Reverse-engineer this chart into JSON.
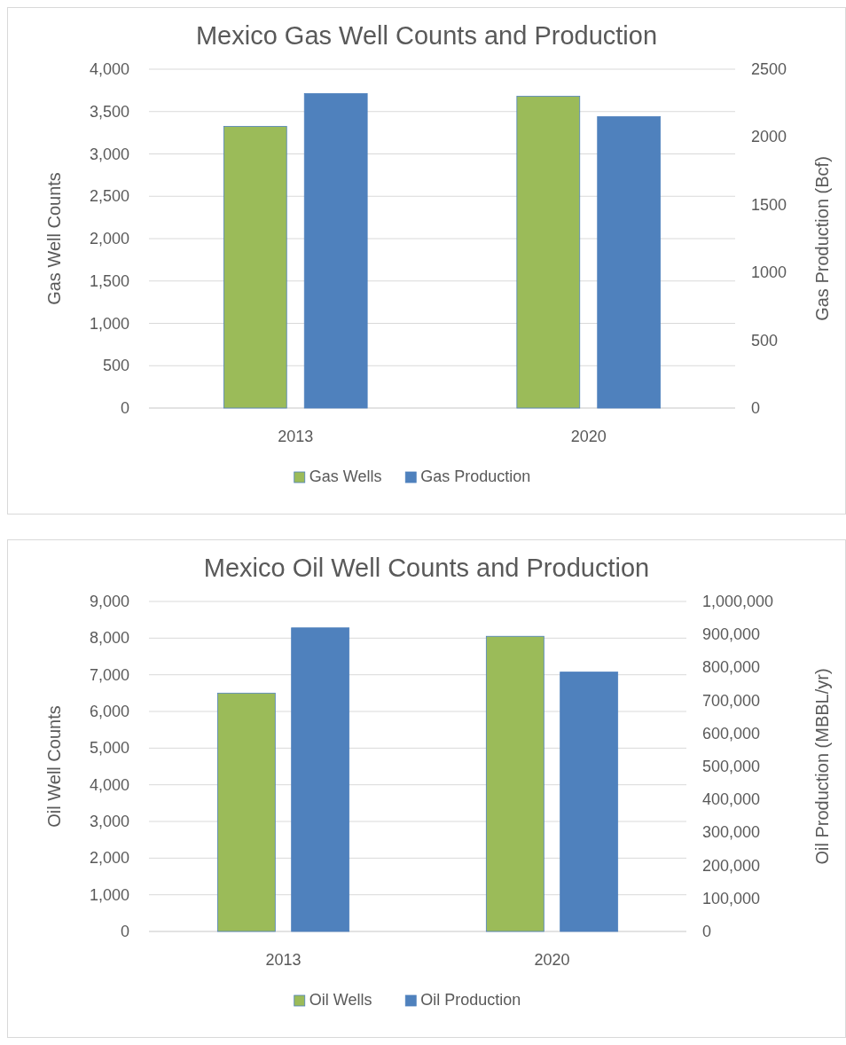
{
  "chart_data": [
    {
      "type": "bar",
      "title": "Mexico Gas Well Counts and Production",
      "ylabel": "Gas Well Counts",
      "y2label": "Gas Production (Bcf)",
      "categories": [
        "2013",
        "2020"
      ],
      "series": [
        {
          "name": "Gas Wells",
          "color": "#9bbb59",
          "values": [
            3325,
            3680
          ]
        },
        {
          "name": "Gas Production",
          "color": "#4f81bd",
          "values": [
            2320,
            2150
          ],
          "axis": "y2"
        }
      ],
      "ylim": [
        0,
        4000
      ],
      "yticks": [
        {
          "value": 0,
          "label": "0"
        },
        {
          "value": 500,
          "label": "500"
        },
        {
          "value": 1000,
          "label": "1,000"
        },
        {
          "value": 1500,
          "label": "1,500"
        },
        {
          "value": 2000,
          "label": "2,000"
        },
        {
          "value": 2500,
          "label": "2,500"
        },
        {
          "value": 3000,
          "label": "3,000"
        },
        {
          "value": 3500,
          "label": "3,500"
        },
        {
          "value": 4000,
          "label": "4,000"
        }
      ],
      "y2lim": [
        0,
        2500
      ],
      "y2ticks": [
        0,
        500,
        1000,
        1500,
        2000,
        2500
      ],
      "grid": "y",
      "legend": "bottom"
    },
    {
      "type": "bar",
      "title": "Mexico Oil Well Counts and Production",
      "ylabel": "Oil Well Counts",
      "y2label": "Oil Production (MBBL/yr)",
      "categories": [
        "2013",
        "2020"
      ],
      "series": [
        {
          "name": "Oil Wells",
          "color": "#9bbb59",
          "values": [
            6500,
            8050
          ]
        },
        {
          "name": "Oil Production",
          "color": "#4f81bd",
          "values": [
            920000,
            786000
          ],
          "axis": "y2"
        }
      ],
      "ylim": [
        0,
        9000
      ],
      "yticks": [
        {
          "value": 0,
          "label": "0"
        },
        {
          "value": 1000,
          "label": "1,000"
        },
        {
          "value": 2000,
          "label": "2,000"
        },
        {
          "value": 3000,
          "label": "3,000"
        },
        {
          "value": 4000,
          "label": "4,000"
        },
        {
          "value": 5000,
          "label": "5,000"
        },
        {
          "value": 6000,
          "label": "6,000"
        },
        {
          "value": 7000,
          "label": "7,000"
        },
        {
          "value": 8000,
          "label": "8,000"
        },
        {
          "value": 9000,
          "label": "9,000"
        }
      ],
      "y2lim": [
        0,
        1000000
      ],
      "y2ticks": [
        {
          "value": 0,
          "label": "0"
        },
        {
          "value": 100000,
          "label": "100,000"
        },
        {
          "value": 200000,
          "label": "200,000"
        },
        {
          "value": 300000,
          "label": "300,000"
        },
        {
          "value": 400000,
          "label": "400,000"
        },
        {
          "value": 500000,
          "label": "500,000"
        },
        {
          "value": 600000,
          "label": "600,000"
        },
        {
          "value": 700000,
          "label": "700,000"
        },
        {
          "value": 800000,
          "label": "800,000"
        },
        {
          "value": 900000,
          "label": "900,000"
        },
        {
          "value": 1000000,
          "label": "1,000,000"
        }
      ],
      "grid": "y",
      "legend": "bottom"
    }
  ]
}
